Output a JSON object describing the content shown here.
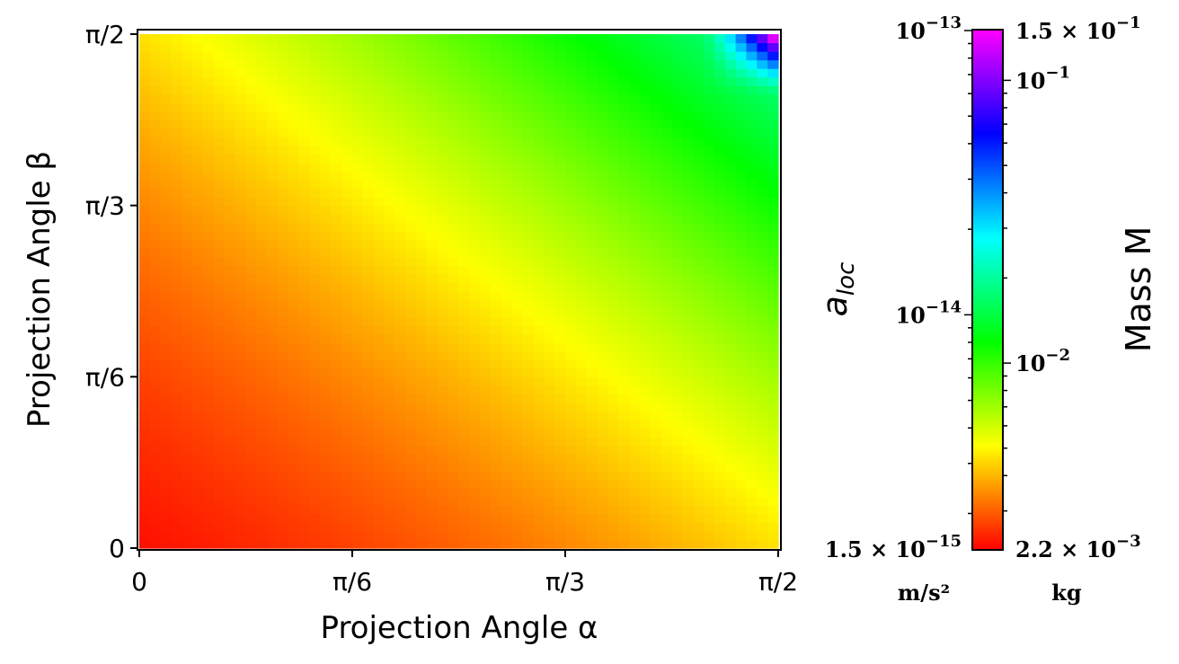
{
  "chart_data": {
    "type": "heatmap",
    "xlabel": "Projection Angle α",
    "ylabel": "Projection Angle β",
    "x_range": [
      0,
      1.5708
    ],
    "y_range": [
      0,
      1.5708
    ],
    "x_ticks": [
      {
        "value": 0,
        "label": "0"
      },
      {
        "value": 0.5236,
        "label": "π/6"
      },
      {
        "value": 1.0472,
        "label": "π/3"
      },
      {
        "value": 1.5708,
        "label": "π/2"
      }
    ],
    "y_ticks": [
      {
        "value": 0,
        "label": "0"
      },
      {
        "value": 0.5236,
        "label": "π/6"
      },
      {
        "value": 1.0472,
        "label": "π/3"
      },
      {
        "value": 1.5708,
        "label": "π/2"
      }
    ],
    "grid": false,
    "grid_cells": 60,
    "colormap": "hsv (red → orange → yellow → green → cyan → blue → magenta)",
    "colorbar": {
      "label": "Mass M",
      "left_label": "a_loc",
      "left_unit": "m/s²",
      "right_unit": "kg",
      "left_scale": "log",
      "right_scale": "log",
      "left_range": [
        1.5e-15,
        1e-13
      ],
      "right_range": [
        0.0022,
        0.15
      ],
      "left_tick_labels": [
        {
          "value": 1e-13,
          "base": "10",
          "exp": "−13"
        },
        {
          "value": 1e-14,
          "base": "10",
          "exp": "−14"
        },
        {
          "value": 1.5e-15,
          "base": "1.5 × 10",
          "exp": "−15"
        }
      ],
      "right_tick_labels": [
        {
          "value": 0.15,
          "base": "1.5 × 10",
          "exp": "−1"
        },
        {
          "value": 0.1,
          "base": "10",
          "exp": "−1"
        },
        {
          "value": 0.01,
          "base": "10",
          "exp": "−2"
        },
        {
          "value": 0.0022,
          "base": "2.2 × 10",
          "exp": "−3"
        }
      ]
    },
    "field_description": "Colour value grows with α and β: minimum (red) near α≈0.1, β≈0.1; yellow band from (π/4, π/2) to (π/2, π/4); green toward upper right; blue/magenta only at the extreme corner α≈β≈π/2"
  }
}
